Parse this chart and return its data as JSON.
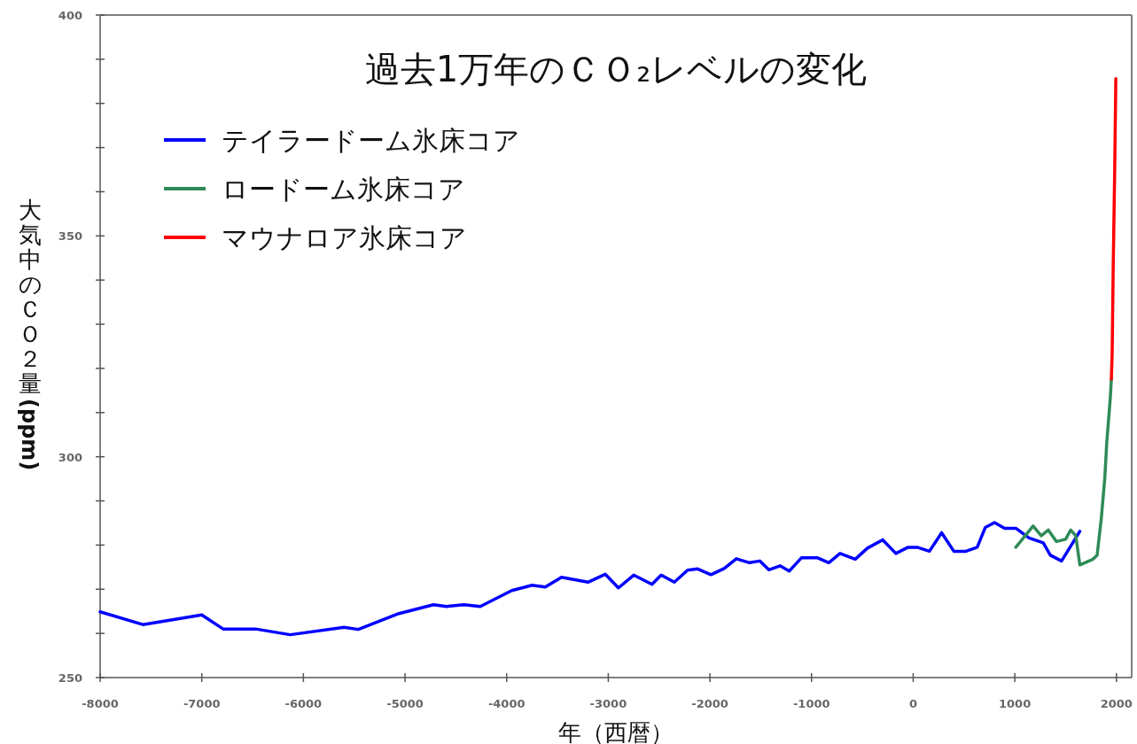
{
  "chart_data": {
    "type": "line",
    "title": "過去1万年のＣＯ₂レベルの変化",
    "xlabel": "年（西暦）",
    "ylabel": "大気中のＣＯ２量 (ppm)",
    "xlim": [
      -8000,
      2150
    ],
    "ylim": [
      250,
      400
    ],
    "xticks": [
      -8000,
      -7000,
      -6000,
      -5000,
      -4000,
      -3000,
      -2000,
      -1000,
      0,
      1000,
      2000
    ],
    "yticks": [
      250,
      {
        "value": 260,
        "label": null
      },
      {
        "value": 270,
        "label": null
      },
      {
        "value": 280,
        "label": null
      },
      {
        "value": 290,
        "label": null
      },
      300,
      {
        "value": 310,
        "label": null
      },
      {
        "value": 320,
        "label": null
      },
      {
        "value": 330,
        "label": null
      },
      {
        "value": 340,
        "label": null
      },
      350,
      {
        "value": 360,
        "label": null
      },
      {
        "value": 370,
        "label": null
      },
      {
        "value": 380,
        "label": null
      },
      {
        "value": 390,
        "label": null
      },
      400
    ],
    "legend": "top left",
    "grid": false,
    "series": [
      {
        "name": "テイラードーム氷床コア",
        "color": "#0000ff",
        "x": [
          -8000,
          -7580,
          -7000,
          -6790,
          -6470,
          -6130,
          -5600,
          -5460,
          -5060,
          -4720,
          -4590,
          -4420,
          -4260,
          -3950,
          -3750,
          -3620,
          -3460,
          -3200,
          -3030,
          -2900,
          -2750,
          -2570,
          -2480,
          -2350,
          -2220,
          -2120,
          -1990,
          -1860,
          -1740,
          -1610,
          -1510,
          -1420,
          -1310,
          -1220,
          -1100,
          -940,
          -830,
          -720,
          -570,
          -450,
          -300,
          -170,
          -50,
          40,
          160,
          280,
          400,
          520,
          630,
          710,
          800,
          900,
          1010,
          1140,
          1280,
          1350,
          1460,
          1640
        ],
        "values": [
          264.9,
          262,
          264.2,
          261,
          261,
          259.7,
          261.4,
          260.9,
          264.5,
          266.5,
          266.1,
          266.5,
          266.1,
          269.7,
          270.9,
          270.5,
          272.7,
          271.6,
          273.4,
          270.3,
          273.2,
          271.1,
          273.2,
          271.6,
          274.3,
          274.6,
          273.3,
          274.7,
          276.9,
          276,
          276.4,
          274.4,
          275.3,
          274.1,
          277.1,
          277.1,
          276,
          278.1,
          276.8,
          279.3,
          281.2,
          278.1,
          279.5,
          279.5,
          278.6,
          282.8,
          278.6,
          278.6,
          279.5,
          284,
          285.1,
          283.8,
          283.8,
          281.6,
          280.5,
          277.7,
          276.4,
          283.1
        ]
      },
      {
        "name": "ロードーム氷床コア",
        "color": "#2e8b57",
        "x": [
          1010,
          1180,
          1260,
          1330,
          1410,
          1500,
          1550,
          1600,
          1640,
          1770,
          1810,
          1840,
          1850,
          1885,
          1905,
          1940,
          1950
        ],
        "values": [
          279.5,
          284.3,
          282.1,
          283.4,
          280.8,
          281.3,
          283.4,
          282.1,
          275.5,
          276.8,
          277.7,
          283.8,
          285.8,
          295,
          303.3,
          313.4,
          317.6
        ]
      },
      {
        "name": "マウナロア氷床コア",
        "color": "#ff0000",
        "x": [
          1950,
          1958,
          1968,
          1983,
          1994
        ],
        "values": [
          317.6,
          323.4,
          342.6,
          365.1,
          385.6
        ]
      }
    ]
  }
}
